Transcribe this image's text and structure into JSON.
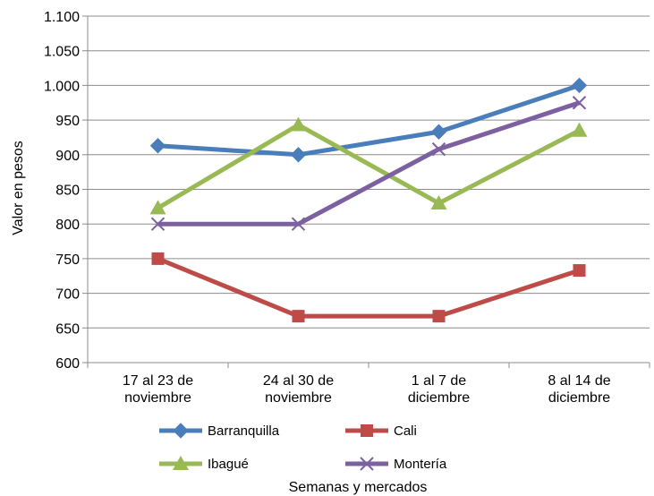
{
  "chart_data": {
    "type": "line",
    "title": "",
    "xlabel": "Semanas y mercados",
    "ylabel": "Valor en pesos",
    "categories": [
      [
        "17 al 23 de",
        "noviembre"
      ],
      [
        "24 al 30 de",
        "noviembre"
      ],
      [
        "1 al 7 de",
        "diciembre"
      ],
      [
        "8 al 14 de",
        "diciembre"
      ]
    ],
    "ylim": [
      600,
      1100
    ],
    "yticks": [
      600,
      650,
      700,
      750,
      800,
      850,
      900,
      950,
      1000,
      1050,
      1100
    ],
    "ytick_labels": [
      "600",
      "650",
      "700",
      "750",
      "800",
      "850",
      "900",
      "950",
      "1.000",
      "1.050",
      "1.100"
    ],
    "grid": "horizontal",
    "legend_position": "bottom",
    "series": [
      {
        "name": "Barranquilla",
        "color": "#4a7ebb",
        "marker": "diamond",
        "values": [
          913,
          900,
          933,
          1000
        ]
      },
      {
        "name": "Cali",
        "color": "#be4b48",
        "marker": "square",
        "values": [
          750,
          667,
          667,
          733
        ]
      },
      {
        "name": "Ibagué",
        "color": "#98b954",
        "marker": "triangle",
        "values": [
          823,
          943,
          830,
          935
        ]
      },
      {
        "name": "Montería",
        "color": "#7d60a0",
        "marker": "cross",
        "values": [
          800,
          800,
          908,
          975
        ]
      }
    ]
  }
}
